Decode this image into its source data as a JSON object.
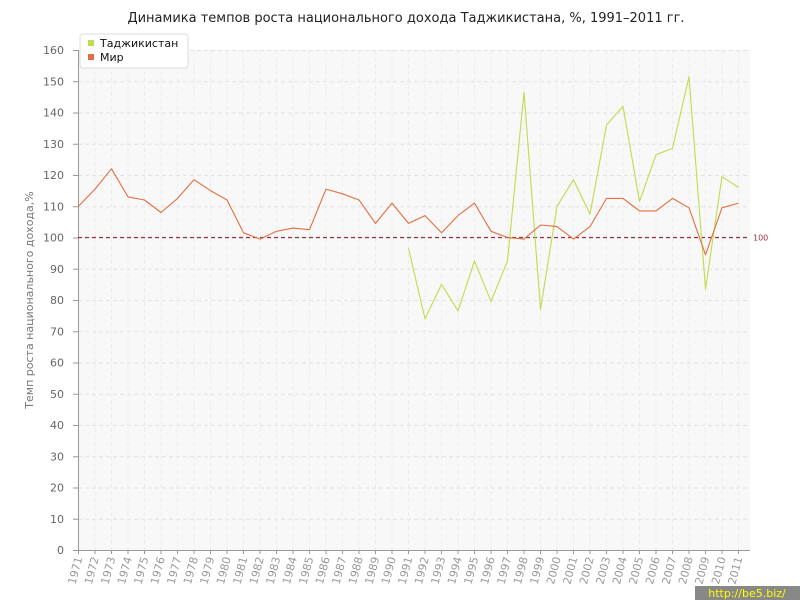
{
  "chart_data": {
    "type": "line",
    "title": "Динамика темпов роста национального дохода Таджикистана, %, 1991–2011 гг.",
    "xlabel": "",
    "ylabel": "Темп роста национального дохода,%",
    "ylim": [
      0,
      160
    ],
    "yticks": [
      0,
      10,
      20,
      30,
      40,
      50,
      60,
      70,
      80,
      90,
      100,
      110,
      120,
      130,
      140,
      150,
      160
    ],
    "categories": [
      "1971",
      "1972",
      "1973",
      "1974",
      "1975",
      "1976",
      "1977",
      "1978",
      "1979",
      "1980",
      "1981",
      "1982",
      "1983",
      "1984",
      "1985",
      "1986",
      "1987",
      "1988",
      "1989",
      "1990",
      "1991",
      "1992",
      "1993",
      "1994",
      "1995",
      "1996",
      "1997",
      "1998",
      "1999",
      "2000",
      "2001",
      "2002",
      "2003",
      "2004",
      "2005",
      "2006",
      "2007",
      "2008",
      "2009",
      "2010",
      "2011"
    ],
    "series": [
      {
        "name": "Таджикистан",
        "color": "#bfdc4e",
        "values": [
          null,
          null,
          null,
          null,
          null,
          null,
          null,
          null,
          null,
          null,
          null,
          null,
          null,
          null,
          null,
          null,
          null,
          null,
          null,
          null,
          96.5,
          74,
          85,
          76.5,
          92.5,
          79.5,
          92.5,
          146.5,
          77,
          110,
          118.5,
          107.5,
          136,
          142,
          111.5,
          126.5,
          128.5,
          151.5,
          83.5,
          119.5,
          116
        ]
      },
      {
        "name": "Мир",
        "color": "#e0703f",
        "values": [
          110,
          115.5,
          122,
          113,
          112,
          108,
          112.5,
          118.5,
          115,
          112,
          101.5,
          99.5,
          102,
          103,
          102.5,
          115.5,
          114,
          112,
          104.5,
          111,
          104.5,
          107,
          101.5,
          107,
          111,
          102,
          100,
          99.5,
          104,
          103.5,
          99.5,
          103.5,
          112.5,
          112.5,
          108.5,
          108.5,
          112.5,
          109.5,
          94.5,
          109.5,
          111
        ]
      }
    ],
    "reference_line": {
      "value": 100,
      "label": "100",
      "color": "#993344"
    },
    "grid": true,
    "legend": "top-left"
  },
  "watermark": "http://be5.biz/"
}
